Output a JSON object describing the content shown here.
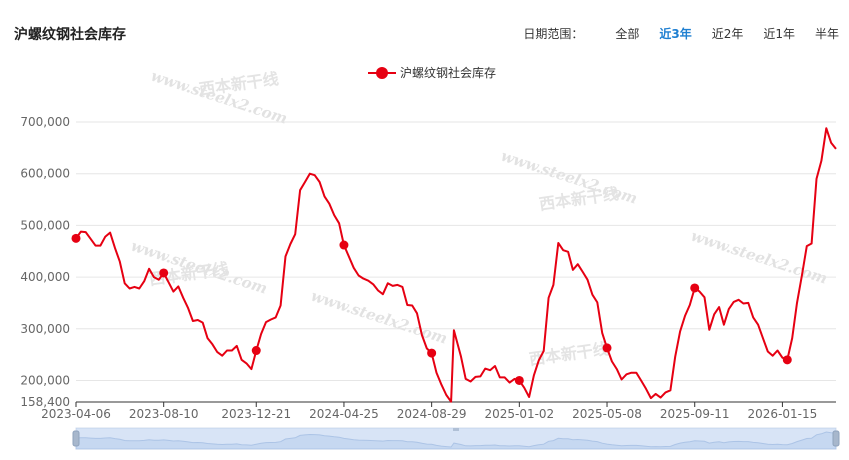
{
  "header": {
    "title": "沪螺纹钢社会库存",
    "range_label": "日期范围：",
    "range_options": [
      "全部",
      "近3年",
      "近2年",
      "近1年",
      "半年"
    ],
    "active_range": "近3年",
    "active_color": "#1e7fd1"
  },
  "watermarks": {
    "url_text": "www.steelx2.com",
    "brand_text": "西本新干线"
  },
  "chart_data": {
    "type": "line",
    "title": "沪螺纹钢社会库存",
    "legend": {
      "position": "top-center"
    },
    "series": [
      {
        "name": "沪螺纹钢社会库存",
        "color": "#e60012",
        "points": [
          [
            "2023-04-06",
            475000
          ],
          [
            "2023-04-13",
            488000
          ],
          [
            "2023-04-20",
            487000
          ],
          [
            "2023-04-27",
            474000
          ],
          [
            "2023-05-04",
            461000
          ],
          [
            "2023-05-11",
            461000
          ],
          [
            "2023-05-18",
            478000
          ],
          [
            "2023-05-25",
            486000
          ],
          [
            "2023-06-01",
            456000
          ],
          [
            "2023-06-08",
            430000
          ],
          [
            "2023-06-15",
            388000
          ],
          [
            "2023-06-22",
            378000
          ],
          [
            "2023-06-29",
            381000
          ],
          [
            "2023-07-06",
            378000
          ],
          [
            "2023-07-13",
            392000
          ],
          [
            "2023-07-20",
            416000
          ],
          [
            "2023-07-27",
            400000
          ],
          [
            "2023-08-03",
            395000
          ],
          [
            "2023-08-10",
            408000
          ],
          [
            "2023-08-17",
            390000
          ],
          [
            "2023-08-24",
            372000
          ],
          [
            "2023-08-31",
            382000
          ],
          [
            "2023-09-07",
            360000
          ],
          [
            "2023-09-14",
            340000
          ],
          [
            "2023-09-21",
            315000
          ],
          [
            "2023-09-28",
            317000
          ],
          [
            "2023-10-05",
            312000
          ],
          [
            "2023-10-12",
            282000
          ],
          [
            "2023-10-19",
            270000
          ],
          [
            "2023-10-26",
            255000
          ],
          [
            "2023-11-02",
            248000
          ],
          [
            "2023-11-09",
            258000
          ],
          [
            "2023-11-16",
            258000
          ],
          [
            "2023-11-23",
            267000
          ],
          [
            "2023-11-30",
            240000
          ],
          [
            "2023-12-07",
            233000
          ],
          [
            "2023-12-14",
            222000
          ],
          [
            "2023-12-21",
            258000
          ],
          [
            "2023-12-28",
            290000
          ],
          [
            "2024-01-04",
            313000
          ],
          [
            "2024-01-11",
            318000
          ],
          [
            "2024-01-18",
            322000
          ],
          [
            "2024-01-25",
            345000
          ],
          [
            "2024-02-01",
            440000
          ],
          [
            "2024-02-08",
            464000
          ],
          [
            "2024-02-15",
            483000
          ],
          [
            "2024-02-22",
            568000
          ],
          [
            "2024-02-29",
            584000
          ],
          [
            "2024-03-07",
            600000
          ],
          [
            "2024-03-14",
            597000
          ],
          [
            "2024-03-21",
            584000
          ],
          [
            "2024-03-28",
            556000
          ],
          [
            "2024-04-04",
            542000
          ],
          [
            "2024-04-11",
            520000
          ],
          [
            "2024-04-18",
            504000
          ],
          [
            "2024-04-25",
            462000
          ],
          [
            "2024-05-02",
            440000
          ],
          [
            "2024-05-09",
            418000
          ],
          [
            "2024-05-16",
            403000
          ],
          [
            "2024-05-23",
            397000
          ],
          [
            "2024-05-30",
            393000
          ],
          [
            "2024-06-06",
            386000
          ],
          [
            "2024-06-13",
            374000
          ],
          [
            "2024-06-20",
            367000
          ],
          [
            "2024-06-27",
            388000
          ],
          [
            "2024-07-04",
            383000
          ],
          [
            "2024-07-11",
            385000
          ],
          [
            "2024-07-18",
            381000
          ],
          [
            "2024-07-25",
            346000
          ],
          [
            "2024-08-01",
            345000
          ],
          [
            "2024-08-08",
            330000
          ],
          [
            "2024-08-15",
            288000
          ],
          [
            "2024-08-22",
            262000
          ],
          [
            "2024-08-29",
            253000
          ],
          [
            "2024-09-05",
            215000
          ],
          [
            "2024-09-12",
            192000
          ],
          [
            "2024-09-19",
            172000
          ],
          [
            "2024-09-26",
            159000
          ],
          [
            "2024-09-30",
            297000
          ],
          [
            "2024-10-10",
            247000
          ],
          [
            "2024-10-17",
            203000
          ],
          [
            "2024-10-24",
            198000
          ],
          [
            "2024-10-31",
            207000
          ],
          [
            "2024-11-07",
            208000
          ],
          [
            "2024-11-14",
            223000
          ],
          [
            "2024-11-21",
            220000
          ],
          [
            "2024-11-28",
            228000
          ],
          [
            "2024-12-05",
            206000
          ],
          [
            "2024-12-12",
            206000
          ],
          [
            "2024-12-19",
            196000
          ],
          [
            "2024-12-26",
            203000
          ],
          [
            "2025-01-02",
            200000
          ],
          [
            "2025-01-09",
            186000
          ],
          [
            "2025-01-16",
            168000
          ],
          [
            "2025-01-23",
            210000
          ],
          [
            "2025-01-30",
            239000
          ],
          [
            "2025-02-06",
            257000
          ],
          [
            "2025-02-13",
            360000
          ],
          [
            "2025-02-20",
            385000
          ],
          [
            "2025-02-27",
            466000
          ],
          [
            "2025-03-06",
            452000
          ],
          [
            "2025-03-13",
            449000
          ],
          [
            "2025-03-20",
            414000
          ],
          [
            "2025-03-27",
            425000
          ],
          [
            "2025-04-03",
            410000
          ],
          [
            "2025-04-10",
            395000
          ],
          [
            "2025-04-17",
            366000
          ],
          [
            "2025-04-24",
            351000
          ],
          [
            "2025-05-01",
            292000
          ],
          [
            "2025-05-08",
            263000
          ],
          [
            "2025-05-15",
            237000
          ],
          [
            "2025-05-22",
            222000
          ],
          [
            "2025-05-29",
            202000
          ],
          [
            "2025-06-05",
            212000
          ],
          [
            "2025-06-12",
            215000
          ],
          [
            "2025-06-19",
            215000
          ],
          [
            "2025-06-26",
            200000
          ],
          [
            "2025-07-03",
            184000
          ],
          [
            "2025-07-10",
            166000
          ],
          [
            "2025-07-17",
            174000
          ],
          [
            "2025-07-24",
            167000
          ],
          [
            "2025-07-31",
            177000
          ],
          [
            "2025-08-07",
            181000
          ],
          [
            "2025-08-14",
            246000
          ],
          [
            "2025-08-21",
            295000
          ],
          [
            "2025-08-28",
            325000
          ],
          [
            "2025-09-04",
            346000
          ],
          [
            "2025-09-11",
            379000
          ],
          [
            "2025-09-18",
            372000
          ],
          [
            "2025-09-25",
            361000
          ],
          [
            "2025-10-02",
            298000
          ],
          [
            "2025-10-09",
            328000
          ],
          [
            "2025-10-16",
            342000
          ],
          [
            "2025-10-23",
            308000
          ],
          [
            "2025-10-30",
            338000
          ],
          [
            "2025-11-06",
            352000
          ],
          [
            "2025-11-13",
            356000
          ],
          [
            "2025-11-20",
            349000
          ],
          [
            "2025-11-27",
            350000
          ],
          [
            "2025-12-04",
            322000
          ],
          [
            "2025-12-11",
            308000
          ],
          [
            "2025-12-18",
            282000
          ],
          [
            "2025-12-25",
            256000
          ],
          [
            "2026-01-01",
            248000
          ],
          [
            "2026-01-08",
            258000
          ],
          [
            "2026-01-15",
            244000
          ],
          [
            "2026-01-22",
            240000
          ],
          [
            "2026-01-29",
            282000
          ],
          [
            "2026-02-05",
            350000
          ],
          [
            "2026-02-12",
            403000
          ],
          [
            "2026-02-19",
            460000
          ],
          [
            "2026-02-26",
            465000
          ],
          [
            "2026-03-05",
            590000
          ],
          [
            "2026-03-12",
            625000
          ],
          [
            "2026-03-19",
            688000
          ],
          [
            "2026-03-26",
            660000
          ],
          [
            "2026-04-02",
            648000
          ]
        ],
        "markers": [
          "2023-04-06",
          "2023-08-10",
          "2023-12-21",
          "2024-04-25",
          "2024-08-29",
          "2025-01-02",
          "2025-05-08",
          "2025-09-11",
          "2026-01-22"
        ]
      }
    ],
    "x_ticks": [
      "2023-04-06",
      "2023-08-10",
      "2023-12-21",
      "2024-04-25",
      "2024-08-29",
      "2025-01-02",
      "2025-05-08",
      "2025-09-11",
      "2026-01-15"
    ],
    "y_ticks": [
      158400,
      200000,
      300000,
      400000,
      500000,
      600000,
      700000
    ],
    "y_tick_labels": [
      "158,400",
      "200,000",
      "300,000",
      "400,000",
      "500,000",
      "600,000",
      "700,000"
    ],
    "ylim": [
      158400,
      700000
    ],
    "xlim": [
      "2023-04-06",
      "2026-04-02"
    ],
    "grid": "horizontal",
    "data_zoom": {
      "start": 0,
      "end": 1
    }
  }
}
